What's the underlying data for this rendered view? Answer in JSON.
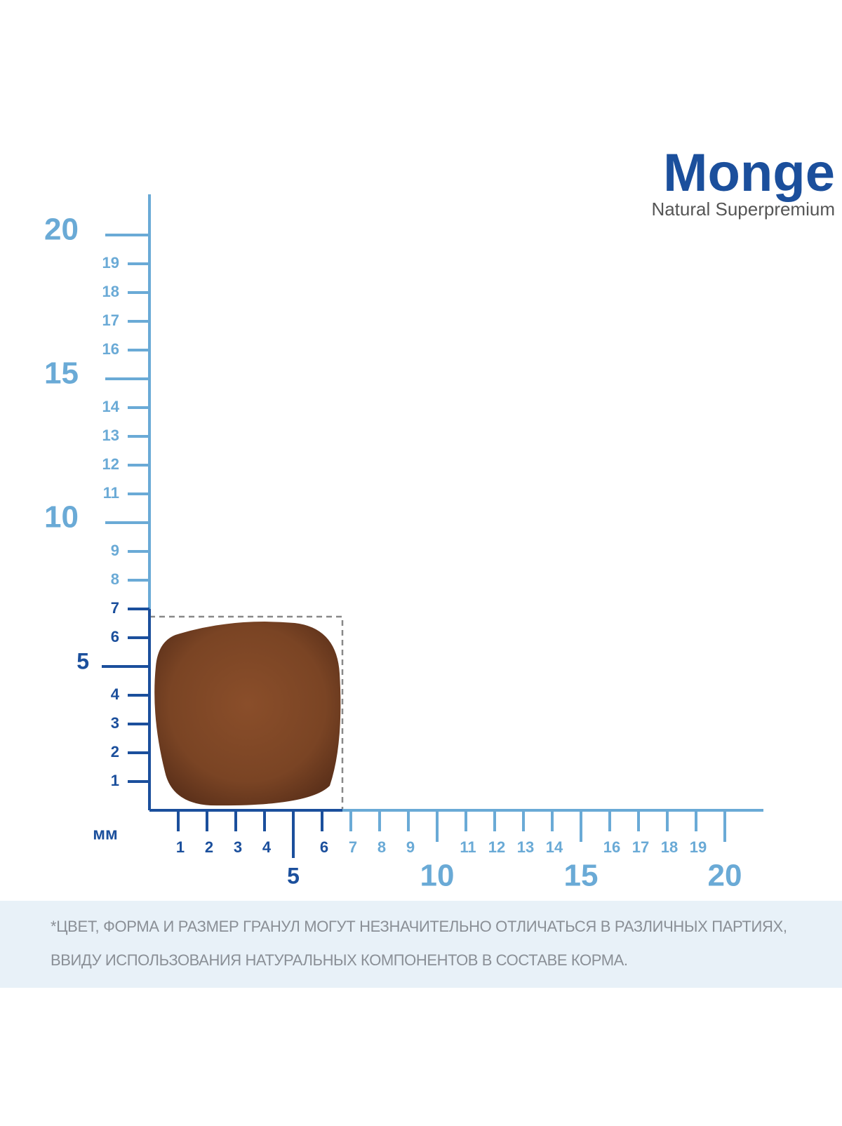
{
  "brand": {
    "name": "Monge",
    "tagline": "Natural Superpremium"
  },
  "ruler": {
    "unit": "мм",
    "colors": {
      "dark": "#1b4f9c",
      "light": "#6aaad6"
    },
    "y": {
      "dark": {
        "minor": [
          1,
          2,
          3,
          4,
          6,
          7
        ],
        "major": [
          5
        ]
      },
      "light": {
        "minor": [
          8,
          9,
          11,
          12,
          13,
          14,
          16,
          17,
          18,
          19
        ],
        "major": [
          10,
          15,
          20
        ]
      }
    },
    "x": {
      "dark": {
        "minor": [
          1,
          2,
          3,
          4,
          6
        ],
        "major": [
          5
        ]
      },
      "light": {
        "minor": [
          7,
          8,
          9,
          11,
          12,
          13,
          14,
          16,
          17,
          18,
          19
        ],
        "major": [
          10,
          15,
          20
        ]
      }
    }
  },
  "disclaimer": {
    "lines": [
      "*ЦВЕТ, ФОРМА И РАЗМЕР ГРАНУЛ МОГУТ НЕЗНАЧИТЕЛЬНО ОТЛИЧАТЬСЯ В РАЗЛИЧНЫХ ПАРТИЯХ,",
      "ВВИДУ ИСПОЛЬЗОВАНИЯ НАТУРАЛЬНЫХ КОМПОНЕНТОВ В СОСТАВЕ КОРМА."
    ]
  }
}
